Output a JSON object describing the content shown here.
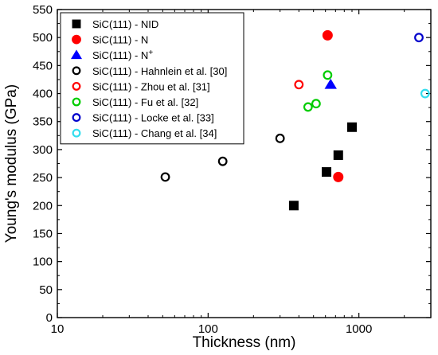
{
  "chart_data": {
    "type": "scatter",
    "title": "",
    "xlabel": "Thickness (nm)",
    "ylabel": "Young's modulus (GPa)",
    "xscale": "log",
    "xlim": [
      10,
      3000
    ],
    "ylim": [
      0,
      550
    ],
    "xticks": [
      10,
      100,
      1000
    ],
    "xtick_labels": [
      "10",
      "100",
      "1000"
    ],
    "yticks": [
      0,
      50,
      100,
      150,
      200,
      250,
      300,
      350,
      400,
      450,
      500,
      550
    ],
    "ytick_labels": [
      "0",
      "50",
      "100",
      "150",
      "200",
      "250",
      "300",
      "350",
      "400",
      "450",
      "500",
      "550"
    ],
    "grid": false,
    "legend_position": "top-left",
    "series": [
      {
        "name": "SiC(111) - NID",
        "marker": "square",
        "filled": true,
        "color": "#000000",
        "points": [
          [
            370,
            200
          ],
          [
            610,
            260
          ],
          [
            730,
            290
          ],
          [
            900,
            340
          ]
        ]
      },
      {
        "name": "SiC(111) - N",
        "marker": "circle",
        "filled": true,
        "color": "#ff0000",
        "points": [
          [
            620,
            504
          ],
          [
            730,
            251
          ]
        ]
      },
      {
        "name": "SiC(111) - N+",
        "name_base": "SiC(111) - N",
        "name_sup": "+",
        "marker": "triangle",
        "filled": true,
        "color": "#0000ff",
        "points": [
          [
            650,
            416
          ]
        ]
      },
      {
        "name": "SiC(111) - Hahnlein et al. [30]",
        "marker": "circle",
        "filled": false,
        "color": "#000000",
        "points": [
          [
            52,
            251
          ],
          [
            125,
            279
          ],
          [
            300,
            320
          ]
        ]
      },
      {
        "name": "SiC(111) - Zhou et al. [31]",
        "marker": "circle",
        "filled": false,
        "color": "#ff0000",
        "points": [
          [
            400,
            416
          ]
        ]
      },
      {
        "name": "SiC(111) - Fu et al. [32]",
        "marker": "circle",
        "filled": false,
        "color": "#00cc00",
        "points": [
          [
            460,
            376
          ],
          [
            520,
            382
          ],
          [
            620,
            433
          ]
        ]
      },
      {
        "name": "SiC(111) - Locke et al. [33]",
        "marker": "circle",
        "filled": false,
        "color": "#0000cc",
        "points": [
          [
            2500,
            500
          ]
        ]
      },
      {
        "name": "SiC(111) - Chang et al. [34]",
        "marker": "circle",
        "filled": false,
        "color": "#33ddee",
        "points": [
          [
            2750,
            400
          ]
        ]
      }
    ]
  }
}
